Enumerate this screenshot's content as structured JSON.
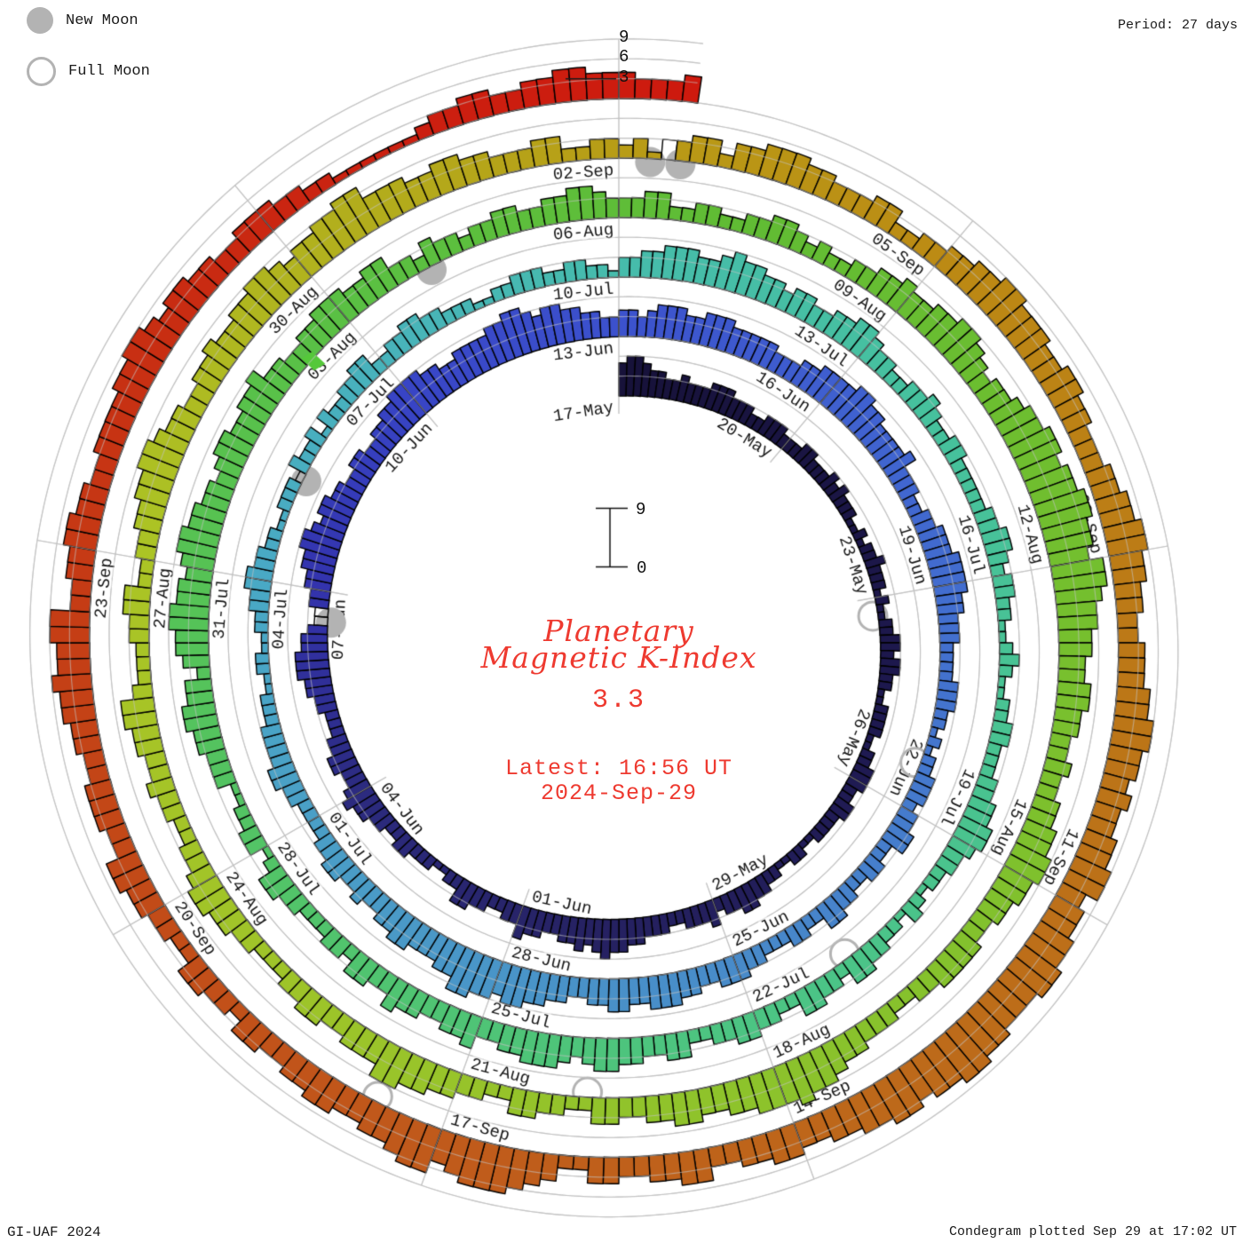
{
  "legend": {
    "new_moon_label": "New Moon",
    "full_moon_label": "Full Moon",
    "moon_color": "#b3b3b3"
  },
  "header": {
    "period_label": "Period: 27 days"
  },
  "footer": {
    "left": "GI-UAF 2024",
    "right": "Condegram plotted Sep 29 at 17:02 UT"
  },
  "center": {
    "title_line1": "Planetary",
    "title_line2": "Magnetic K-Index",
    "value": "3.3",
    "latest_line1": "Latest: 16:56 UT",
    "latest_line2": "2024-Sep-29",
    "text_color": "#ee3a30",
    "scale_top_label": "9",
    "scale_bottom_label": "0"
  },
  "axis": {
    "tick_labels": [
      "3",
      "6",
      "9"
    ]
  },
  "chart_data": {
    "type": "polar_spiral_bar_condegram",
    "title": "Planetary Magnetic K-Index",
    "latest_value": 3.3,
    "latest_time": "16:56 UT 2024-Sep-29",
    "start_date": "2024-May-17",
    "end_date": "2024-Sep-29",
    "period_days": 27,
    "intervals_per_day": 8,
    "klim": [
      0,
      9
    ],
    "value_tick_k": 3,
    "grid_color": "#c2c2c2",
    "bar_outline": "#000000",
    "label_color": "#161616",
    "moon_color": "#b3b3b3",
    "spokes": [
      {
        "angle": 0,
        "dates": [
          "17-May",
          "13-Jun",
          "10-Jul",
          "06-Aug",
          "02-Sep"
        ]
      },
      {
        "angle": 40,
        "dates": [
          "20-May",
          "16-Jun",
          "13-Jul",
          "09-Aug",
          "05-Sep"
        ]
      },
      {
        "angle": 80,
        "dates": [
          "23-May",
          "19-Jun",
          "16-Jul",
          "12-Aug",
          "08-Sep"
        ]
      },
      {
        "angle": 120,
        "dates": [
          "26-May",
          "22-Jun",
          "19-Jul",
          "15-Aug",
          "11-Sep"
        ]
      },
      {
        "angle": 160,
        "dates": [
          "29-May",
          "25-Jun",
          "22-Jul",
          "18-Aug",
          "14-Sep"
        ]
      },
      {
        "angle": 200,
        "dates": [
          "01-Jun",
          "28-Jun",
          "25-Jul",
          "21-Aug",
          "17-Sep"
        ]
      },
      {
        "angle": 240,
        "dates": [
          "04-Jun",
          "01-Jul",
          "28-Jul",
          "24-Aug",
          "20-Sep"
        ]
      },
      {
        "angle": 280,
        "dates": [
          "07-Jun",
          "04-Jul",
          "31-Jul",
          "27-Aug",
          "23-Sep"
        ]
      },
      {
        "angle": 320,
        "dates": [
          "10-Jun",
          "07-Jul",
          "03-Aug",
          "30-Aug"
        ]
      }
    ],
    "daily_k": [
      "56654433",
      "43334443",
      "33223332",
      "22332223",
      "23222112",
      "12232221",
      "21122332",
      "33221122",
      "22112233",
      "32233222",
      "21122112",
      "23344332",
      "43332233",
      "34455654",
      "54433445",
      "33223344",
      "22112223",
      "32233445",
      "43344332",
      "22334455",
      "54432233",
      "44556654",
      "55443344",
      "33445566",
      "66554455",
      "55667765",
      "66554433",
      "44345554",
      "45554444",
      "43334455",
      "55665544",
      "44533322",
      "33444555",
      "54433322",
      "22333221",
      "21223332",
      "33442233",
      "22334422",
      "33222334",
      "44334455",
      "54455443",
      "34455665",
      "66775544",
      "45544334",
      "33443322",
      "22334433",
      "33222112",
      "21122334",
      "43322112",
      "22132231",
      "32233442",
      "23344332",
      "22112233",
      "32233221",
      "33445554",
      "45655443",
      "44334455",
      "43322334",
      "32233222",
      "22334432",
      "33221123",
      "21122332",
      "22334455",
      "43322123",
      "12233442",
      "33442233",
      "44332244",
      "33445543",
      "45554433",
      "54433445",
      "33442332",
      "22334421",
      "33221133",
      "34455442",
      "45566554",
      "56655443",
      "45544556",
      "44334455",
      "54455332",
      "43323344",
      "33445543",
      "33442233",
      "22334432",
      "32233445",
      "44556654",
      "34456677",
      "67788776",
      "88766554",
      "45544334",
      "33445566",
      "55443344",
      "44332233",
      "34456676",
      "66554455",
      "44334422",
      "33442233",
      "44556644",
      "43344332",
      "22334455",
      "43322334",
      "33445532",
      "22334422",
      "33445566",
      "54433445",
      "44556654",
      "55667755",
      "54455443",
      "33442233",
      "23133442",
      "44555443",
      "33442233",
      "44556655",
      "54455443",
      "33445566",
      "55443344",
      "45566554",
      "54455664",
      "55667766",
      "67788776",
      "77665544",
      "55443355",
      "44334422",
      "45677765",
      "77655445",
      "54433442",
      "33442233",
      "44553344",
      "43344556",
      "55663344",
      "55443344",
      "44556654",
      "55443344",
      "43322111",
      "11123344",
      "33445544",
      "43334"
    ],
    "gaps": [
      {
        "day": 20,
        "intervals": [
          4,
          5
        ]
      },
      {
        "day": 49,
        "intervals": [
          2
        ]
      },
      {
        "day": 108,
        "intervals": [
          3
        ]
      }
    ],
    "full_moons": [
      {
        "date": "23-May",
        "day": 6.3
      },
      {
        "date": "21-Jun",
        "day": 35.4
      },
      {
        "date": "21-Jul",
        "day": 64.8
      },
      {
        "date": "19-Aug",
        "day": 94.8
      },
      {
        "date": "17-Sep",
        "day": 123.6
      }
    ],
    "new_moons": [
      {
        "date": "06-Jun",
        "day": 20.55
      },
      {
        "date": "05-Jul",
        "day": 49.3
      },
      {
        "date": "04-Aug",
        "day": 79.0
      },
      {
        "date": "02-Sep",
        "day": 108.28
      },
      {
        "date": "03-Sep",
        "day": 108.55
      }
    ],
    "artifact": {
      "day": 77.45,
      "color": "#55c83a"
    },
    "colormap": [
      {
        "d": 0,
        "c": "#17123a"
      },
      {
        "d": 8,
        "c": "#1e1950"
      },
      {
        "d": 14,
        "c": "#262263"
      },
      {
        "d": 18,
        "c": "#2c2b80"
      },
      {
        "d": 21,
        "c": "#3333ad"
      },
      {
        "d": 24,
        "c": "#3845c6"
      },
      {
        "d": 27,
        "c": "#3c52cd"
      },
      {
        "d": 31,
        "c": "#4064d0"
      },
      {
        "d": 35,
        "c": "#4476ce"
      },
      {
        "d": 39,
        "c": "#488bc9"
      },
      {
        "d": 44,
        "c": "#4a9cc7"
      },
      {
        "d": 48,
        "c": "#49a9c5"
      },
      {
        "d": 51,
        "c": "#48b3bb"
      },
      {
        "d": 54,
        "c": "#46bcab"
      },
      {
        "d": 58,
        "c": "#46c19d"
      },
      {
        "d": 62,
        "c": "#49c391"
      },
      {
        "d": 66,
        "c": "#4cc483"
      },
      {
        "d": 70,
        "c": "#50c471"
      },
      {
        "d": 74,
        "c": "#55c35a"
      },
      {
        "d": 78,
        "c": "#5ac043"
      },
      {
        "d": 82,
        "c": "#60bc34"
      },
      {
        "d": 86,
        "c": "#6fbe2f"
      },
      {
        "d": 90,
        "c": "#80c12d"
      },
      {
        "d": 94,
        "c": "#90c32b"
      },
      {
        "d": 98,
        "c": "#9fc429"
      },
      {
        "d": 102,
        "c": "#abc425"
      },
      {
        "d": 105,
        "c": "#b1b21e"
      },
      {
        "d": 108,
        "c": "#b89c16"
      },
      {
        "d": 111,
        "c": "#bc8a14"
      },
      {
        "d": 115,
        "c": "#bc7717"
      },
      {
        "d": 119,
        "c": "#bd691a"
      },
      {
        "d": 123,
        "c": "#c05a1b"
      },
      {
        "d": 127,
        "c": "#c34617"
      },
      {
        "d": 130,
        "c": "#c73213"
      },
      {
        "d": 133,
        "c": "#cb2010"
      },
      {
        "d": 136,
        "c": "#ce190e"
      }
    ]
  }
}
